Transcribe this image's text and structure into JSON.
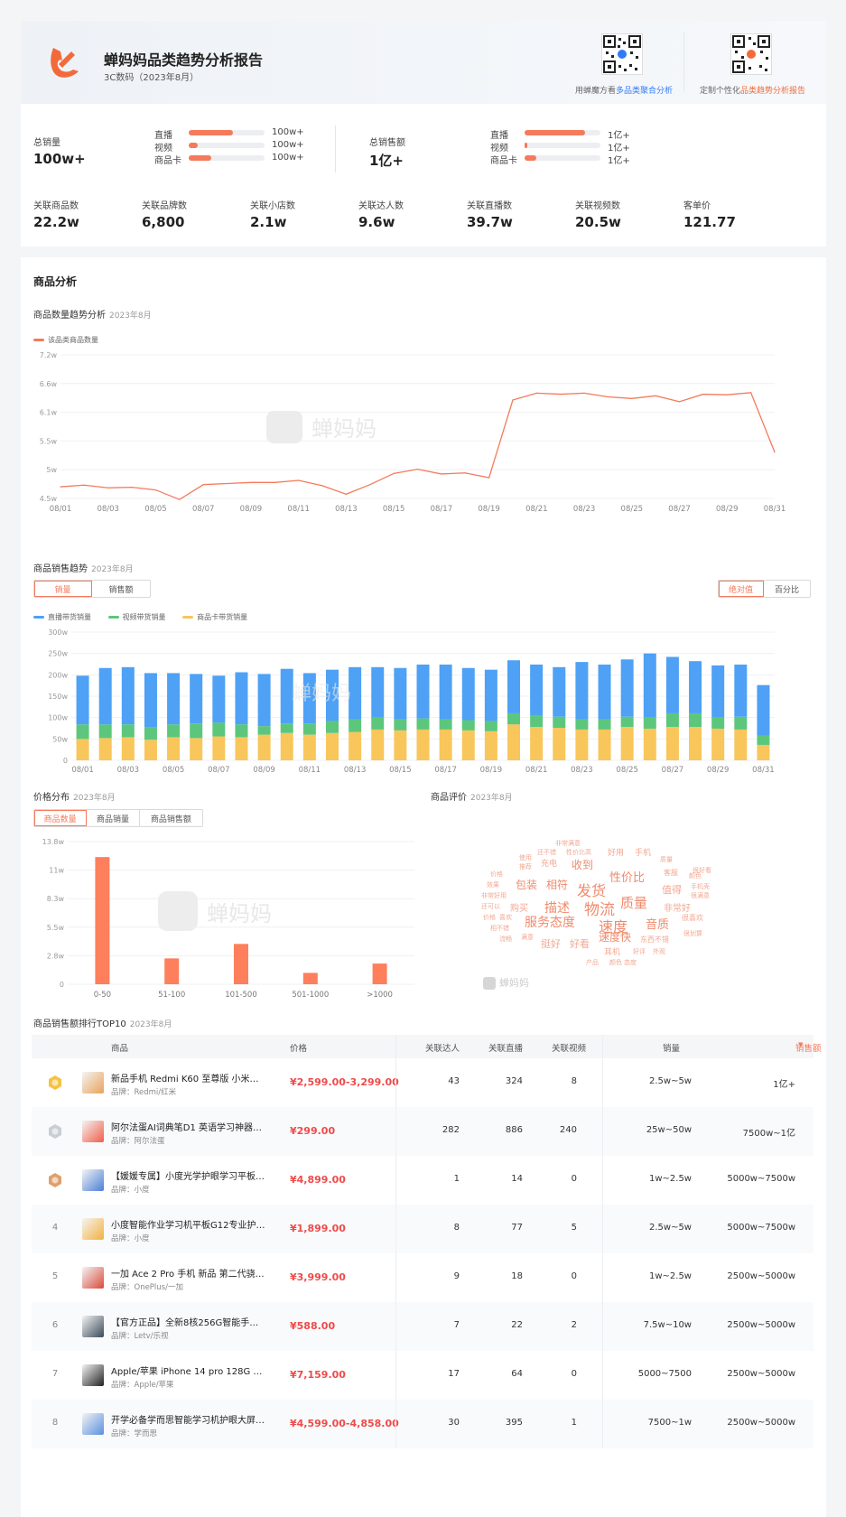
{
  "header": {
    "title": "蝉妈妈品类趋势分析报告",
    "subtitle": "3C数码（2023年8月）",
    "qr_left_prefix": "用蝉魔方看",
    "qr_left_link": "多品类聚合分析",
    "qr_right_prefix": "定制个性化",
    "qr_right_link": "品类趋势分析报告"
  },
  "summary": {
    "sales_label": "总销量",
    "sales_value": "100w+",
    "sales_channels": [
      {
        "name": "直播",
        "value": "100w+",
        "pct": 0.58
      },
      {
        "name": "视频",
        "value": "100w+",
        "pct": 0.12
      },
      {
        "name": "商品卡",
        "value": "100w+",
        "pct": 0.3
      }
    ],
    "amount_label": "总销售额",
    "amount_value": "1亿+",
    "amount_channels": [
      {
        "name": "直播",
        "value": "1亿+",
        "pct": 0.8
      },
      {
        "name": "视频",
        "value": "1亿+",
        "pct": 0.04
      },
      {
        "name": "商品卡",
        "value": "1亿+",
        "pct": 0.16
      }
    ],
    "metrics": [
      {
        "label": "关联商品数",
        "value": "22.2w"
      },
      {
        "label": "关联品牌数",
        "value": "6,800"
      },
      {
        "label": "关联小店数",
        "value": "2.1w"
      },
      {
        "label": "关联达人数",
        "value": "9.6w"
      },
      {
        "label": "关联直播数",
        "value": "39.7w"
      },
      {
        "label": "关联视频数",
        "value": "20.5w"
      },
      {
        "label": "客单价",
        "value": "121.77"
      }
    ]
  },
  "section_title": "商品分析",
  "watermark": "蝉妈妈",
  "colors": {
    "accent": "#f47a5b",
    "live": "#4ea1f5",
    "video": "#5cc77c",
    "card": "#f8c65a",
    "price": "#f04a4a"
  },
  "trend": {
    "title": "商品数量趋势分析",
    "date": "2023年8月",
    "legend": "该品类商品数量"
  },
  "sales_trend": {
    "title": "商品销售趋势",
    "date": "2023年8月",
    "tabs": [
      "销量",
      "销售额"
    ],
    "active_tab": "销量",
    "modes": [
      "绝对值",
      "百分比"
    ],
    "active_mode": "绝对值",
    "legend": [
      "直播带货销量",
      "视频带货销量",
      "商品卡带货销量"
    ]
  },
  "price": {
    "title": "价格分布",
    "date": "2023年8月",
    "tabs": [
      "商品数量",
      "商品销量",
      "商品销售额"
    ],
    "active_tab": "商品数量"
  },
  "review": {
    "title": "商品评价",
    "date": "2023年8月",
    "words": [
      {
        "t": "非常满意",
        "s": 7
      },
      {
        "t": "还不错",
        "s": 7
      },
      {
        "t": "性价比高",
        "s": 7
      },
      {
        "t": "好用",
        "s": 9
      },
      {
        "t": "手机",
        "s": 9
      },
      {
        "t": "使用",
        "s": 7
      },
      {
        "t": "推荐",
        "s": 7
      },
      {
        "t": "充电",
        "s": 9
      },
      {
        "t": "收到",
        "s": 12
      },
      {
        "t": "质量",
        "s": 7
      },
      {
        "t": "价格",
        "s": 7
      },
      {
        "t": "效果",
        "s": 7
      },
      {
        "t": "包装",
        "s": 12
      },
      {
        "t": "相符",
        "s": 12
      },
      {
        "t": "发货",
        "s": 16
      },
      {
        "t": "性价比",
        "s": 13
      },
      {
        "t": "客服",
        "s": 8
      },
      {
        "t": "颜色",
        "s": 7
      },
      {
        "t": "手机壳",
        "s": 7
      },
      {
        "t": "很满意",
        "s": 7
      },
      {
        "t": "值得",
        "s": 11
      },
      {
        "t": "很好看",
        "s": 7
      },
      {
        "t": "非常好用",
        "s": 7
      },
      {
        "t": "购买",
        "s": 10
      },
      {
        "t": "描述",
        "s": 14
      },
      {
        "t": "物流",
        "s": 17
      },
      {
        "t": "质量",
        "s": 15
      },
      {
        "t": "非常好",
        "s": 10
      },
      {
        "t": "还可以",
        "s": 7
      },
      {
        "t": "喜欢",
        "s": 7
      },
      {
        "t": "服务态度",
        "s": 14
      },
      {
        "t": "速度",
        "s": 16
      },
      {
        "t": "音质",
        "s": 13
      },
      {
        "t": "很喜欢",
        "s": 8
      },
      {
        "t": "相不错",
        "s": 7
      },
      {
        "t": "流畅",
        "s": 7
      },
      {
        "t": "速度快",
        "s": 12
      },
      {
        "t": "很划算",
        "s": 7
      },
      {
        "t": "价格",
        "s": 7
      },
      {
        "t": "挺好",
        "s": 11
      },
      {
        "t": "好看",
        "s": 11
      },
      {
        "t": "东西不错",
        "s": 8
      },
      {
        "t": "耳机",
        "s": 9
      },
      {
        "t": "好评",
        "s": 7
      },
      {
        "t": "外观",
        "s": 7
      },
      {
        "t": "满意",
        "s": 7
      },
      {
        "t": "产品",
        "s": 7
      },
      {
        "t": "颜色",
        "s": 7
      },
      {
        "t": "态度",
        "s": 7
      }
    ]
  },
  "table": {
    "title": "商品销售额排行TOP10",
    "date": "2023年8月",
    "headers": {
      "product": "商品",
      "price": "价格",
      "kols": "关联达人",
      "lives": "关联直播",
      "videos": "关联视频",
      "sales": "销量",
      "amount": "销售额"
    },
    "rows": [
      {
        "rank": "",
        "medal": "gold",
        "name": "新品手机 Redmi K60 至尊版 小米…",
        "brand": "品牌：Redmi/红米",
        "price": "¥2,599.00-3,299.00",
        "kols": "43",
        "lives": "324",
        "videos": "8",
        "sales": "2.5w~5w",
        "amount": "1亿+"
      },
      {
        "rank": "",
        "medal": "silver",
        "name": "阿尔法蛋AI词典笔D1 英语学习神器…",
        "brand": "品牌：阿尔法蛋",
        "price": "¥299.00",
        "kols": "282",
        "lives": "886",
        "videos": "240",
        "sales": "25w~50w",
        "amount": "7500w~1亿"
      },
      {
        "rank": "",
        "medal": "bronze",
        "name": "【媛媛专属】小度光学护眼学习平板…",
        "brand": "品牌：小度",
        "price": "¥4,899.00",
        "kols": "1",
        "lives": "14",
        "videos": "0",
        "sales": "1w~2.5w",
        "amount": "5000w~7500w"
      },
      {
        "rank": "4",
        "medal": "",
        "name": "小度智能作业学习机平板G12专业护…",
        "brand": "品牌：小度",
        "price": "¥1,899.00",
        "kols": "8",
        "lives": "77",
        "videos": "5",
        "sales": "2.5w~5w",
        "amount": "5000w~7500w"
      },
      {
        "rank": "5",
        "medal": "",
        "name": "一加 Ace 2 Pro 手机 新品 第二代骁…",
        "brand": "品牌：OnePlus/一加",
        "price": "¥3,999.00",
        "kols": "9",
        "lives": "18",
        "videos": "0",
        "sales": "1w~2.5w",
        "amount": "2500w~5000w"
      },
      {
        "rank": "6",
        "medal": "",
        "name": "【官方正品】全新8核256G智能手…",
        "brand": "品牌：Letv/乐视",
        "price": "¥588.00",
        "kols": "7",
        "lives": "22",
        "videos": "2",
        "sales": "7.5w~10w",
        "amount": "2500w~5000w"
      },
      {
        "rank": "7",
        "medal": "",
        "name": "Apple/苹果 iPhone 14 pro 128G …",
        "brand": "品牌：Apple/苹果",
        "price": "¥7,159.00",
        "kols": "17",
        "lives": "64",
        "videos": "0",
        "sales": "5000~7500",
        "amount": "2500w~5000w"
      },
      {
        "rank": "8",
        "medal": "",
        "name": "开学必备学而思智能学习机护眼大屏…",
        "brand": "品牌：学而思",
        "price": "¥4,599.00-4,858.00",
        "kols": "30",
        "lives": "395",
        "videos": "1",
        "sales": "7500~1w",
        "amount": "2500w~5000w"
      }
    ]
  },
  "chart_data": [
    {
      "type": "line",
      "title": "商品数量趋势分析",
      "legend": [
        "该品类商品数量"
      ],
      "x": [
        "08/01",
        "08/02",
        "08/03",
        "08/04",
        "08/05",
        "08/06",
        "08/07",
        "08/08",
        "08/09",
        "08/10",
        "08/11",
        "08/12",
        "08/13",
        "08/14",
        "08/15",
        "08/16",
        "08/17",
        "08/18",
        "08/19",
        "08/20",
        "08/21",
        "08/22",
        "08/23",
        "08/24",
        "08/25",
        "08/26",
        "08/27",
        "08/28",
        "08/29",
        "08/30",
        "08/31"
      ],
      "xticks": [
        "08/01",
        "08/03",
        "08/05",
        "08/07",
        "08/09",
        "08/11",
        "08/13",
        "08/15",
        "08/17",
        "08/19",
        "08/21",
        "08/23",
        "08/25",
        "08/27",
        "08/29",
        "08/31"
      ],
      "values": [
        4.72,
        4.75,
        4.7,
        4.71,
        4.66,
        4.48,
        4.76,
        4.78,
        4.8,
        4.8,
        4.84,
        4.74,
        4.58,
        4.76,
        4.97,
        5.05,
        4.96,
        4.98,
        4.89,
        6.35,
        6.48,
        6.46,
        6.48,
        6.41,
        6.38,
        6.43,
        6.32,
        6.46,
        6.45,
        6.49,
        5.37
      ],
      "yticks": [
        "4.5w",
        "5w",
        "5.5w",
        "6.1w",
        "6.6w",
        "7.2w"
      ],
      "ylim": [
        4.5,
        7.2
      ]
    },
    {
      "type": "bar",
      "title": "商品销售趋势",
      "categories": [
        "08/01",
        "08/02",
        "08/03",
        "08/04",
        "08/05",
        "08/06",
        "08/07",
        "08/08",
        "08/09",
        "08/10",
        "08/11",
        "08/12",
        "08/13",
        "08/14",
        "08/15",
        "08/16",
        "08/17",
        "08/18",
        "08/19",
        "08/20",
        "08/21",
        "08/22",
        "08/23",
        "08/24",
        "08/25",
        "08/26",
        "08/27",
        "08/28",
        "08/29",
        "08/30",
        "08/31"
      ],
      "xticks": [
        "08/01",
        "08/03",
        "08/05",
        "08/07",
        "08/09",
        "08/11",
        "08/13",
        "08/15",
        "08/17",
        "08/19",
        "08/21",
        "08/23",
        "08/25",
        "08/27",
        "08/29",
        "08/31"
      ],
      "series": [
        {
          "name": "商品卡带货销量",
          "values": [
            50,
            52,
            54,
            48,
            54,
            52,
            56,
            54,
            60,
            64,
            60,
            64,
            66,
            72,
            70,
            72,
            72,
            70,
            68,
            84,
            78,
            76,
            72,
            72,
            78,
            74,
            78,
            78,
            74,
            72,
            36
          ]
        },
        {
          "name": "视频带货销量",
          "values": [
            34,
            32,
            30,
            30,
            30,
            34,
            32,
            30,
            20,
            22,
            26,
            28,
            30,
            28,
            26,
            26,
            24,
            24,
            24,
            26,
            26,
            26,
            24,
            24,
            24,
            26,
            32,
            32,
            26,
            30,
            22
          ]
        },
        {
          "name": "直播带货销量",
          "values": [
            114,
            132,
            134,
            126,
            120,
            116,
            110,
            122,
            122,
            128,
            118,
            120,
            122,
            118,
            120,
            126,
            128,
            122,
            120,
            124,
            120,
            116,
            134,
            128,
            134,
            150,
            132,
            122,
            122,
            122,
            118
          ]
        }
      ],
      "yticks": [
        "0",
        "50w",
        "100w",
        "150w",
        "200w",
        "250w",
        "300w"
      ],
      "ylim": [
        0,
        300
      ]
    },
    {
      "type": "bar",
      "title": "价格分布",
      "categories": [
        "0-50",
        "51-100",
        "101-500",
        "501-1000",
        ">1000"
      ],
      "values": [
        12.3,
        2.5,
        3.9,
        1.1,
        2.0
      ],
      "yticks": [
        "0",
        "2.8w",
        "5.5w",
        "8.3w",
        "11w",
        "13.8w"
      ],
      "ylim": [
        0,
        13.8
      ]
    }
  ]
}
